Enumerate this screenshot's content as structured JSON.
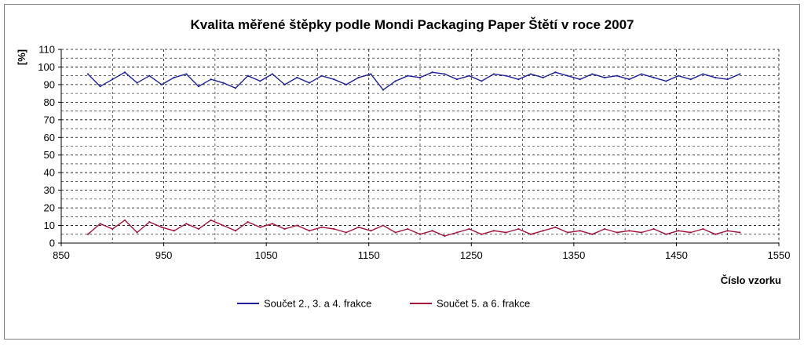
{
  "chart_data": {
    "type": "line",
    "title": "Kvalita měřené štěpky podle Mondi Packaging Paper Štětí v roce 2007",
    "xlabel": "Číslo vzorku",
    "ylabel": "[%]",
    "xlim": [
      850,
      1550
    ],
    "ylim": [
      0,
      110
    ],
    "x_ticks": [
      850,
      950,
      1050,
      1150,
      1250,
      1350,
      1450,
      1550
    ],
    "y_ticks": [
      0,
      10,
      20,
      30,
      40,
      50,
      60,
      70,
      80,
      90,
      100,
      110
    ],
    "grid": true,
    "legend_position": "bottom",
    "series": [
      {
        "name": "Součet 2., 3. a 4. frakce",
        "color": "#1f1f99",
        "x": [
          876,
          888,
          900,
          912,
          924,
          936,
          948,
          960,
          972,
          984,
          996,
          1008,
          1020,
          1032,
          1044,
          1056,
          1068,
          1080,
          1092,
          1104,
          1116,
          1128,
          1140,
          1152,
          1164,
          1176,
          1188,
          1200,
          1212,
          1224,
          1236,
          1248,
          1260,
          1272,
          1284,
          1296,
          1308,
          1320,
          1332,
          1344,
          1356,
          1368,
          1380,
          1392,
          1404,
          1416,
          1428,
          1440,
          1452,
          1464,
          1476,
          1488,
          1500,
          1512
        ],
        "y": [
          96,
          89,
          93,
          97,
          91,
          95,
          90,
          94,
          96,
          89,
          93,
          91,
          88,
          95,
          92,
          96,
          90,
          94,
          91,
          95,
          93,
          90,
          94,
          96,
          87,
          92,
          95,
          94,
          97,
          96,
          93,
          95,
          92,
          96,
          95,
          93,
          96,
          94,
          97,
          95,
          93,
          96,
          94,
          95,
          93,
          96,
          94,
          92,
          95,
          93,
          96,
          94,
          93,
          96
        ]
      },
      {
        "name": "Součet 5. a 6. frakce",
        "color": "#a0143c",
        "x": [
          876,
          888,
          900,
          912,
          924,
          936,
          948,
          960,
          972,
          984,
          996,
          1008,
          1020,
          1032,
          1044,
          1056,
          1068,
          1080,
          1092,
          1104,
          1116,
          1128,
          1140,
          1152,
          1164,
          1176,
          1188,
          1200,
          1212,
          1224,
          1236,
          1248,
          1260,
          1272,
          1284,
          1296,
          1308,
          1320,
          1332,
          1344,
          1356,
          1368,
          1380,
          1392,
          1404,
          1416,
          1428,
          1440,
          1452,
          1464,
          1476,
          1488,
          1500,
          1512
        ],
        "y": [
          5,
          11,
          8,
          13,
          6,
          12,
          9,
          7,
          11,
          8,
          13,
          10,
          7,
          12,
          9,
          11,
          8,
          10,
          7,
          9,
          8,
          6,
          9,
          7,
          10,
          6,
          8,
          5,
          7,
          4,
          6,
          8,
          5,
          7,
          6,
          8,
          5,
          7,
          9,
          6,
          7,
          5,
          8,
          6,
          7,
          6,
          8,
          5,
          7,
          6,
          8,
          5,
          7,
          6
        ]
      }
    ]
  }
}
